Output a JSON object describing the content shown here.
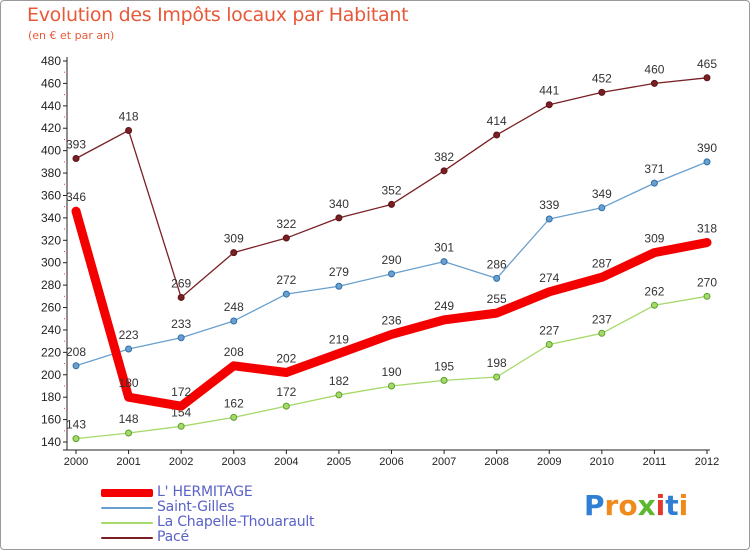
{
  "header": {
    "title": "Evolution des Impôts locaux par Habitant",
    "subtitle": "(en € et par an)"
  },
  "chart_data": {
    "type": "line",
    "title": "Evolution des Impôts locaux par Habitant",
    "subtitle": "(en € et par an)",
    "xlabel": "",
    "ylabel": "",
    "categories": [
      "2000",
      "2001",
      "2002",
      "2003",
      "2004",
      "2005",
      "2006",
      "2007",
      "2008",
      "2009",
      "2010",
      "2011",
      "2012"
    ],
    "ylim": [
      140,
      480
    ],
    "yticks": [
      140,
      160,
      180,
      200,
      220,
      240,
      260,
      280,
      300,
      320,
      340,
      360,
      380,
      400,
      420,
      440,
      460,
      480
    ],
    "grid": false,
    "legend": "bottom-left",
    "series": [
      {
        "name": "Pacé",
        "color": "#7a1f24",
        "values": [
          393,
          418,
          269,
          309,
          322,
          340,
          352,
          382,
          414,
          441,
          452,
          460,
          465
        ]
      },
      {
        "name": "Saint-Gilles",
        "color": "#6aa0cf",
        "values": [
          208,
          223,
          233,
          248,
          272,
          279,
          290,
          301,
          286,
          339,
          349,
          371,
          390
        ]
      },
      {
        "name": "La Chapelle-Thouarault",
        "color": "#a6d96a",
        "values": [
          143,
          148,
          154,
          162,
          172,
          182,
          190,
          195,
          198,
          227,
          237,
          262,
          270
        ]
      },
      {
        "name": "L' HERMITAGE",
        "color": "#f40000",
        "values": [
          346,
          180,
          172,
          208,
          202,
          219,
          236,
          249,
          255,
          274,
          287,
          309,
          318
        ]
      }
    ]
  },
  "legend": [
    {
      "label": "L' HERMITAGE",
      "color": "#f40000"
    },
    {
      "label": "Saint-Gilles",
      "color": "#6aa0cf"
    },
    {
      "label": "La Chapelle-Thouarault",
      "color": "#a6d96a"
    },
    {
      "label": "Pacé",
      "color": "#7a1f24"
    }
  ],
  "logo": {
    "text": "Proxiti",
    "letters": [
      "P",
      "r",
      "o",
      "x",
      "i",
      "t",
      "i"
    ],
    "colors": [
      "#2f7fd4",
      "#f08a1a",
      "#f08a1a",
      "#5cb82e",
      "#e23a2a",
      "#2f7fd4",
      "#f08a1a"
    ]
  }
}
